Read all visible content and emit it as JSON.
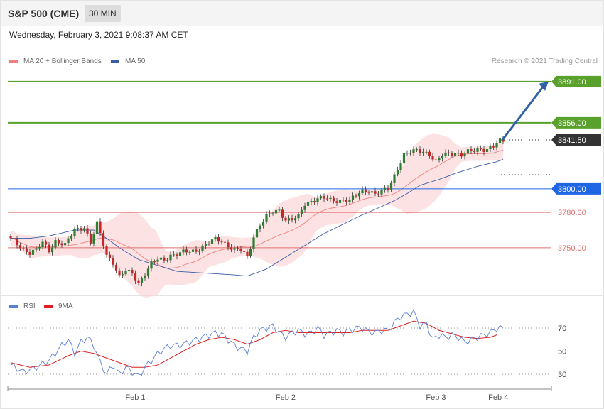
{
  "header": {
    "title": "S&P 500 (CME)",
    "timeframe": "30 MIN"
  },
  "date_text": "Wednesday, February 3, 2021 9:08:37 AM CET",
  "credit": "Research © 2021 Trading Central",
  "legend_main": [
    {
      "label": "MA 20 + Bollinger Bands",
      "color": "#f08080"
    },
    {
      "label": "MA 50",
      "color": "#3a5ea6"
    }
  ],
  "legend_rsi": [
    {
      "label": "RSI",
      "color": "#5b7fd6"
    },
    {
      "label": "9MA",
      "color": "#e02020"
    }
  ],
  "colors": {
    "up": "#2e7d32",
    "down": "#c62828",
    "target": "#5aa02c",
    "pivot": "#1f66e5",
    "support": "#e07070",
    "last": "#333333",
    "arrow": "#3060a8"
  },
  "chart_data": {
    "type": "candlestick",
    "price_axis": {
      "ylim": [
        3712,
        3918
      ]
    },
    "levels": [
      {
        "value": 3891,
        "label": "3891.00",
        "kind": "target"
      },
      {
        "value": 3856,
        "label": "3856.00",
        "kind": "target"
      },
      {
        "value": 3841.5,
        "label": "3841.50",
        "kind": "last"
      },
      {
        "value": 3800,
        "label": "3800.00",
        "kind": "pivot"
      },
      {
        "value": 3780,
        "label": "3780.00",
        "kind": "support"
      },
      {
        "value": 3750,
        "label": "3750.00",
        "kind": "support"
      }
    ],
    "x_labels": [
      {
        "label": "Feb 1",
        "index": 39
      },
      {
        "label": "Feb 2",
        "index": 86
      },
      {
        "label": "Feb 3",
        "index": 133
      },
      {
        "label": "Feb 4",
        "index": 152.5
      }
    ],
    "anchors": [
      [
        0,
        3757
      ],
      [
        4,
        3749
      ],
      [
        6,
        3746
      ],
      [
        8,
        3748
      ],
      [
        10,
        3754
      ],
      [
        12,
        3748
      ],
      [
        14,
        3756
      ],
      [
        17,
        3752
      ],
      [
        20,
        3765
      ],
      [
        23,
        3768
      ],
      [
        25,
        3754
      ],
      [
        27,
        3770
      ],
      [
        30,
        3744
      ],
      [
        32,
        3738
      ],
      [
        34,
        3725
      ],
      [
        36,
        3730
      ],
      [
        38,
        3728
      ],
      [
        40,
        3720
      ],
      [
        42,
        3728
      ],
      [
        44,
        3736
      ],
      [
        46,
        3740
      ],
      [
        48,
        3740
      ],
      [
        50,
        3744
      ],
      [
        52,
        3744
      ],
      [
        54,
        3746
      ],
      [
        56,
        3747
      ],
      [
        58,
        3748
      ],
      [
        60,
        3751
      ],
      [
        62,
        3754
      ],
      [
        64,
        3757
      ],
      [
        66,
        3756
      ],
      [
        68,
        3752
      ],
      [
        70,
        3748
      ],
      [
        72,
        3748
      ],
      [
        74,
        3742
      ],
      [
        76,
        3760
      ],
      [
        78,
        3770
      ],
      [
        80,
        3776
      ],
      [
        82,
        3780
      ],
      [
        84,
        3782
      ],
      [
        86,
        3774
      ],
      [
        88,
        3774
      ],
      [
        90,
        3776
      ],
      [
        92,
        3787
      ],
      [
        94,
        3790
      ],
      [
        96,
        3792
      ],
      [
        98,
        3792
      ],
      [
        100,
        3790
      ],
      [
        102,
        3790
      ],
      [
        104,
        3791
      ],
      [
        106,
        3790
      ],
      [
        108,
        3794
      ],
      [
        110,
        3798
      ],
      [
        112,
        3799
      ],
      [
        114,
        3796
      ],
      [
        116,
        3797
      ],
      [
        118,
        3800
      ],
      [
        119,
        3805
      ],
      [
        121,
        3818
      ],
      [
        123,
        3829
      ],
      [
        125,
        3831
      ],
      [
        127,
        3832
      ],
      [
        129,
        3832
      ],
      [
        131,
        3830
      ],
      [
        133,
        3822
      ],
      [
        135,
        3828
      ],
      [
        137,
        3830
      ],
      [
        139,
        3831
      ],
      [
        141,
        3829
      ],
      [
        143,
        3831
      ],
      [
        145,
        3832
      ],
      [
        147,
        3834
      ],
      [
        149,
        3834
      ],
      [
        151,
        3836
      ],
      [
        153,
        3840
      ]
    ],
    "ma50_anchors": [
      [
        0,
        3758
      ],
      [
        6,
        3758
      ],
      [
        12,
        3760
      ],
      [
        20,
        3765
      ],
      [
        26,
        3765
      ],
      [
        30,
        3758
      ],
      [
        34,
        3750
      ],
      [
        40,
        3740
      ],
      [
        46,
        3735
      ],
      [
        52,
        3730
      ],
      [
        58,
        3729
      ],
      [
        64,
        3728
      ],
      [
        70,
        3727
      ],
      [
        74,
        3726
      ],
      [
        80,
        3732
      ],
      [
        86,
        3742
      ],
      [
        92,
        3752
      ],
      [
        98,
        3762
      ],
      [
        104,
        3770
      ],
      [
        110,
        3778
      ],
      [
        116,
        3785
      ],
      [
        120,
        3790
      ],
      [
        124,
        3796
      ],
      [
        128,
        3803
      ],
      [
        134,
        3808
      ],
      [
        140,
        3814
      ],
      [
        146,
        3819
      ],
      [
        152,
        3823
      ],
      [
        154,
        3825
      ]
    ],
    "rsi": {
      "ticks": [
        30,
        50,
        70
      ],
      "rsi_anchors": [
        [
          0,
          38
        ],
        [
          4,
          32
        ],
        [
          8,
          36
        ],
        [
          12,
          42
        ],
        [
          16,
          55
        ],
        [
          18,
          60
        ],
        [
          20,
          48
        ],
        [
          22,
          58
        ],
        [
          24,
          62
        ],
        [
          26,
          55
        ],
        [
          28,
          40
        ],
        [
          30,
          30
        ],
        [
          32,
          38
        ],
        [
          34,
          30
        ],
        [
          36,
          36
        ],
        [
          38,
          32
        ],
        [
          40,
          28
        ],
        [
          42,
          36
        ],
        [
          44,
          42
        ],
        [
          46,
          48
        ],
        [
          48,
          52
        ],
        [
          50,
          55
        ],
        [
          52,
          55
        ],
        [
          54,
          56
        ],
        [
          56,
          58
        ],
        [
          58,
          60
        ],
        [
          60,
          62
        ],
        [
          62,
          64
        ],
        [
          64,
          66
        ],
        [
          66,
          65
        ],
        [
          68,
          60
        ],
        [
          70,
          55
        ],
        [
          72,
          52
        ],
        [
          74,
          50
        ],
        [
          76,
          62
        ],
        [
          78,
          68
        ],
        [
          80,
          70
        ],
        [
          82,
          72
        ],
        [
          84,
          66
        ],
        [
          86,
          62
        ],
        [
          88,
          66
        ],
        [
          90,
          68
        ],
        [
          92,
          65
        ],
        [
          94,
          66
        ],
        [
          96,
          70
        ],
        [
          98,
          64
        ],
        [
          100,
          66
        ],
        [
          102,
          68
        ],
        [
          104,
          66
        ],
        [
          106,
          68
        ],
        [
          108,
          70
        ],
        [
          110,
          70
        ],
        [
          112,
          67
        ],
        [
          114,
          66
        ],
        [
          116,
          68
        ],
        [
          118,
          68
        ],
        [
          120,
          75
        ],
        [
          122,
          80
        ],
        [
          124,
          82
        ],
        [
          126,
          84
        ],
        [
          128,
          72
        ],
        [
          130,
          74
        ],
        [
          132,
          60
        ],
        [
          134,
          64
        ],
        [
          136,
          62
        ],
        [
          138,
          64
        ],
        [
          140,
          62
        ],
        [
          142,
          58
        ],
        [
          144,
          60
        ],
        [
          146,
          62
        ],
        [
          148,
          64
        ],
        [
          150,
          66
        ],
        [
          152,
          70
        ],
        [
          154,
          70
        ]
      ],
      "ma_anchors": [
        [
          0,
          40
        ],
        [
          6,
          36
        ],
        [
          12,
          38
        ],
        [
          18,
          46
        ],
        [
          22,
          50
        ],
        [
          26,
          48
        ],
        [
          32,
          42
        ],
        [
          38,
          36
        ],
        [
          42,
          36
        ],
        [
          46,
          38
        ],
        [
          50,
          44
        ],
        [
          54,
          50
        ],
        [
          58,
          56
        ],
        [
          62,
          60
        ],
        [
          66,
          62
        ],
        [
          70,
          60
        ],
        [
          74,
          56
        ],
        [
          78,
          60
        ],
        [
          82,
          66
        ],
        [
          86,
          68
        ],
        [
          90,
          66
        ],
        [
          94,
          66
        ],
        [
          98,
          66
        ],
        [
          102,
          66
        ],
        [
          106,
          66
        ],
        [
          110,
          68
        ],
        [
          114,
          68
        ],
        [
          118,
          68
        ],
        [
          122,
          72
        ],
        [
          126,
          76
        ],
        [
          130,
          74
        ],
        [
          134,
          68
        ],
        [
          138,
          65
        ],
        [
          142,
          62
        ],
        [
          146,
          61
        ],
        [
          150,
          62
        ],
        [
          152,
          64
        ]
      ]
    }
  }
}
